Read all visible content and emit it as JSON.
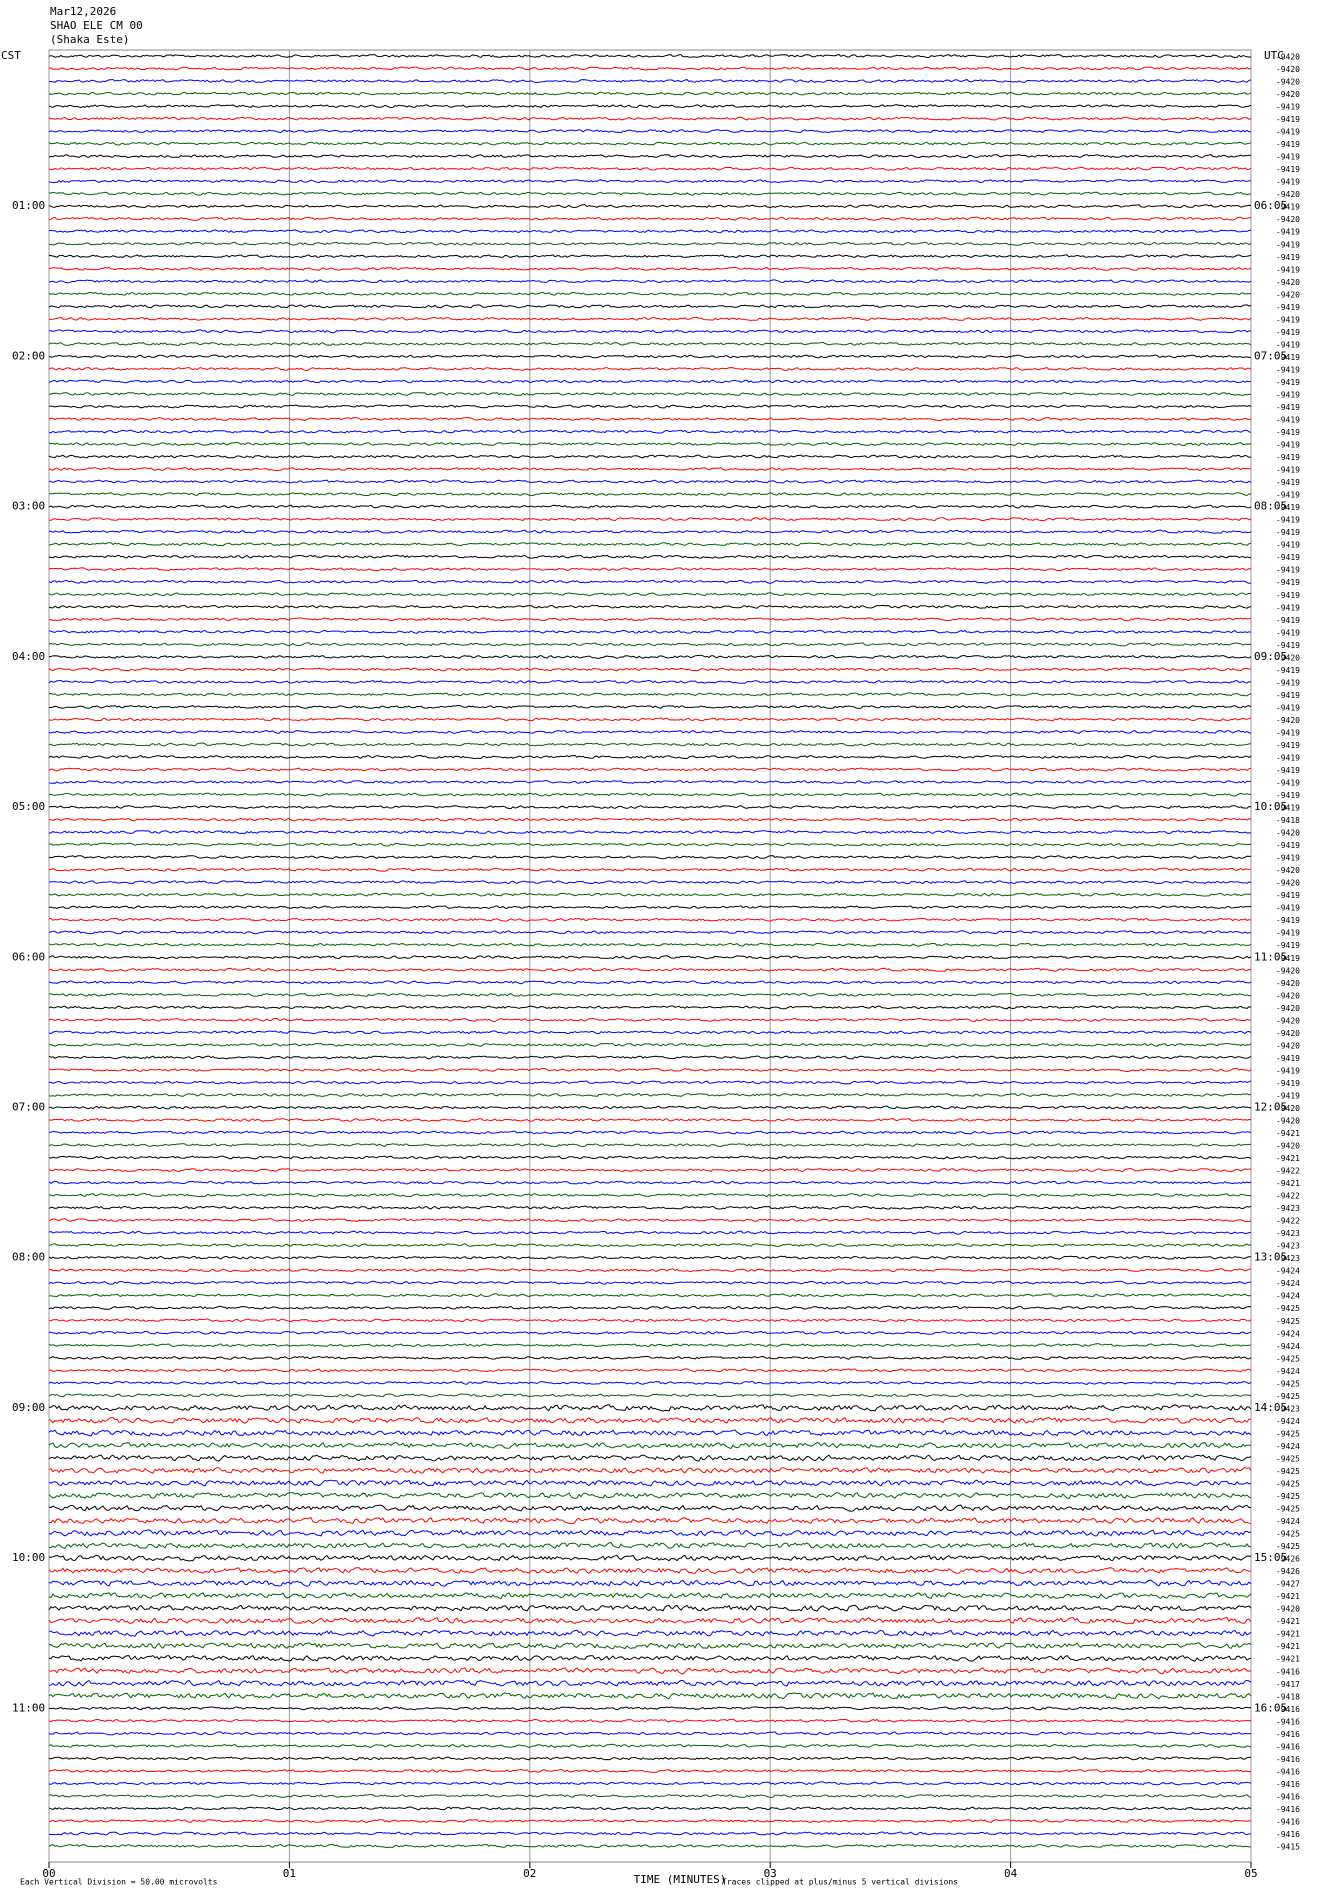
{
  "chart_data": {
    "type": "seismogram",
    "title_lines": [
      "Mar12,2026",
      "SHAO ELE CM 00",
      "(Shaka Este)"
    ],
    "left_axis_label": "CST",
    "right_axis_label": "UTC",
    "left_labels": [
      "01:00",
      "02:00",
      "03:00",
      "04:00",
      "05:00",
      "06:00",
      "07:00",
      "08:00",
      "09:00",
      "10:00",
      "11:00"
    ],
    "right_labels": [
      "06:05",
      "07:05",
      "08:05",
      "09:05",
      "10:05",
      "11:05",
      "12:05",
      "13:05",
      "14:05",
      "15:05",
      "16:05"
    ],
    "xlabel": "TIME (MINUTES)",
    "xlim": [
      0,
      5
    ],
    "xticks": [
      {
        "value": 0,
        "label": "00"
      },
      {
        "value": 1,
        "label": "01"
      },
      {
        "value": 2,
        "label": "02"
      },
      {
        "value": 3,
        "label": "03"
      },
      {
        "value": 4,
        "label": "04"
      },
      {
        "value": 5,
        "label": "05"
      }
    ],
    "scale_note": "Each Vertical Division =   50.00 microvolts",
    "clip_note": "Traces clipped at plus/minus 5 vertical divisions",
    "trace_colors": [
      "#000000",
      "#ff0000",
      "#0000ff",
      "#006400"
    ],
    "trace_values": [
      -9420,
      -9420,
      -9420,
      -9420,
      -9419,
      -9419,
      -9419,
      -9419,
      -9419,
      -9419,
      -9419,
      -9420,
      -9419,
      -9420,
      -9419,
      -9419,
      -9419,
      -9419,
      -9420,
      -9420,
      -9419,
      -9419,
      -9419,
      -9419,
      -9419,
      -9419,
      -9419,
      -9419,
      -9419,
      -9419,
      -9419,
      -9419,
      -9419,
      -9419,
      -9419,
      -9419,
      -9419,
      -9419,
      -9419,
      -9419,
      -9419,
      -9419,
      -9419,
      -9419,
      -9419,
      -9419,
      -9419,
      -9419,
      -9420,
      -9419,
      -9419,
      -9419,
      -9419,
      -9420,
      -9419,
      -9419,
      -9419,
      -9419,
      -9419,
      -9419,
      -9419,
      -9418,
      -9420,
      -9419,
      -9419,
      -9420,
      -9420,
      -9419,
      -9419,
      -9419,
      -9419,
      -9419,
      -9419,
      -9420,
      -9420,
      -9420,
      -9420,
      -9420,
      -9420,
      -9420,
      -9419,
      -9419,
      -9419,
      -9419,
      -9420,
      -9420,
      -9421,
      -9420,
      -9421,
      -9422,
      -9421,
      -9422,
      -9423,
      -9422,
      -9423,
      -9423,
      -9423,
      -9424,
      -9424,
      -9424,
      -9425,
      -9425,
      -9424,
      -9424,
      -9425,
      -9424,
      -9425,
      -9425,
      -9423,
      -9424,
      -9425,
      -9424,
      -9425,
      -9425,
      -9425,
      -9425,
      -9425,
      -9424,
      -9425,
      -9425,
      -9426,
      -9426,
      -9427,
      -9421,
      -9420,
      -9421,
      -9421,
      -9421,
      -9421,
      -9416,
      -9417,
      -9418,
      -9416,
      -9416,
      -9416,
      -9416,
      -9416,
      -9416,
      -9416,
      -9416,
      -9416,
      -9416,
      -9416,
      -9415
    ]
  }
}
